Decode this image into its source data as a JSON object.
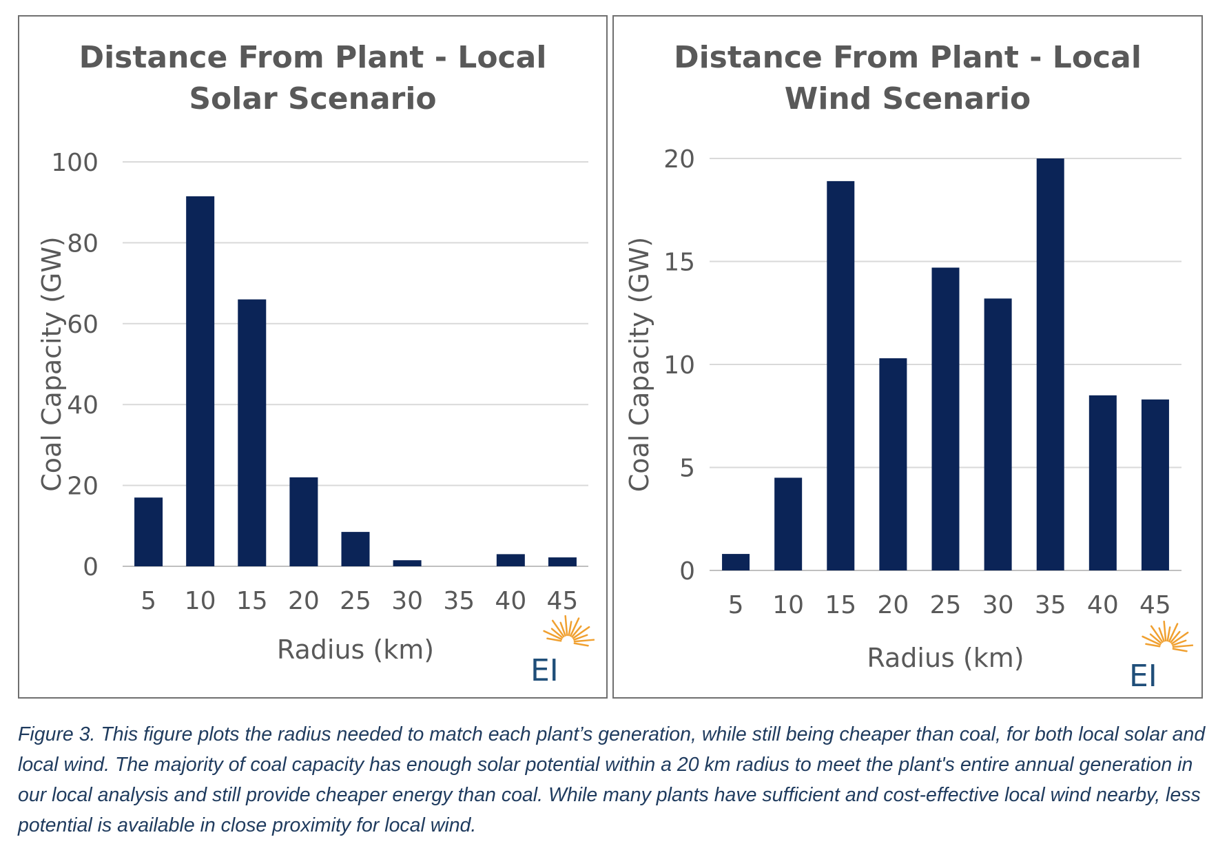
{
  "chart_data": [
    {
      "type": "bar",
      "title": "Distance From Plant - Local Solar Scenario",
      "xlabel": "Radius (km)",
      "ylabel": "Coal Capacity (GW)",
      "categories": [
        "5",
        "10",
        "15",
        "20",
        "25",
        "30",
        "35",
        "40",
        "45"
      ],
      "values": [
        17,
        91.5,
        66,
        22,
        8.5,
        1.5,
        0,
        3,
        2.2
      ],
      "ylim": [
        0,
        100
      ],
      "yticks": [
        0,
        20,
        40,
        60,
        80,
        100
      ],
      "grid": true,
      "bar_color": "#0b2457"
    },
    {
      "type": "bar",
      "title": "Distance From Plant  - Local Wind Scenario",
      "xlabel": "Radius (km)",
      "ylabel": "Coal Capacity (GW)",
      "categories": [
        "5",
        "10",
        "15",
        "20",
        "25",
        "30",
        "35",
        "40",
        "45"
      ],
      "values": [
        0.8,
        4.5,
        18.9,
        10.3,
        14.7,
        13.2,
        20,
        8.5,
        8.3
      ],
      "ylim": [
        0,
        20
      ],
      "yticks": [
        0,
        5,
        10,
        15,
        20
      ],
      "grid": true,
      "bar_color": "#0b2457"
    }
  ],
  "logo": {
    "text": "EI",
    "text_color": "#1f4e79",
    "ray_color": "#f0a030"
  },
  "caption": "Figure 3. This figure plots the radius needed to match each plant’s generation, while still being cheaper than coal, for both local solar and local wind. The majority of coal capacity has enough solar potential within a 20 km radius to meet the plant's entire annual generation in our local analysis and still provide cheaper energy than coal. While many plants have sufficient and cost-effective local wind nearby, less potential is available in close proximity for local wind."
}
